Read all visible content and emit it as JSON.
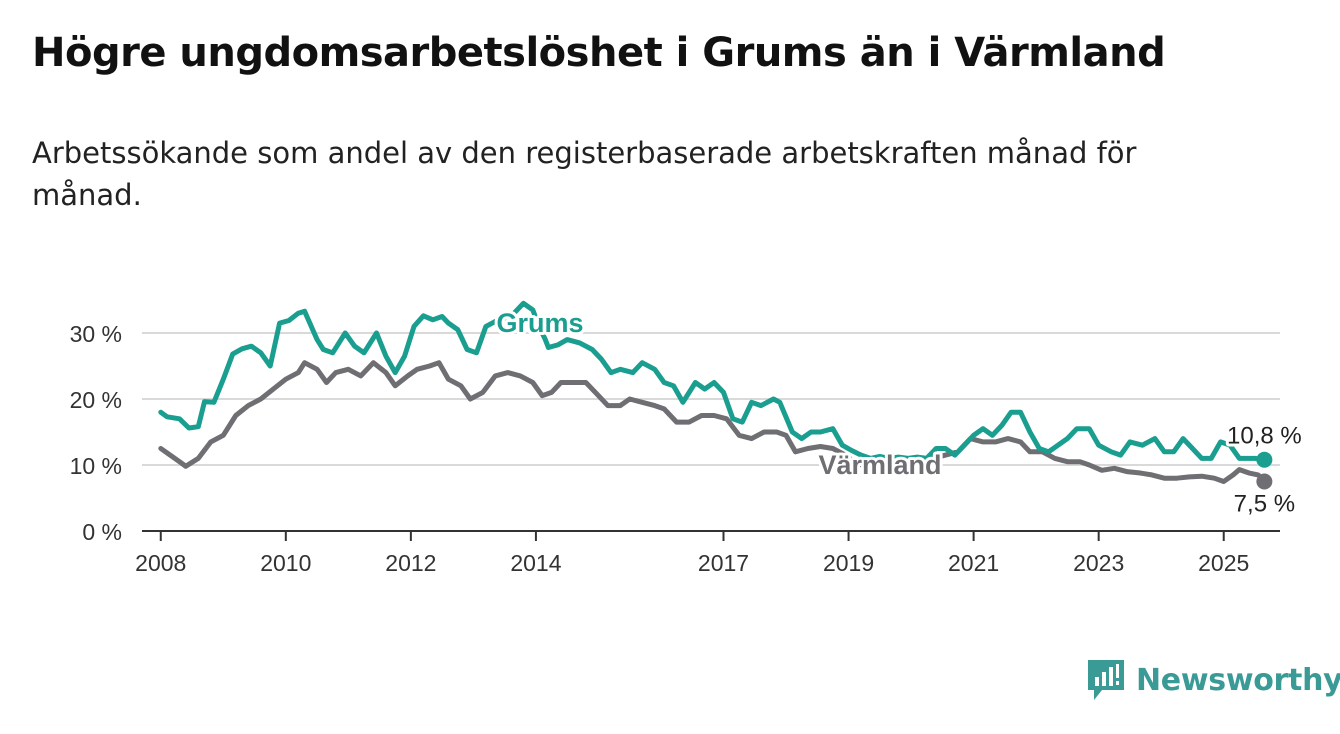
{
  "title": "Högre ungdomsarbetslöshet i Grums än i Värmland",
  "subtitle": "Arbetssökande som andel av den registerbaserade arbetskraften månad för månad.",
  "brand": "Newsworthy",
  "colors": {
    "grums": "#1a9e8f",
    "varmland": "#6e6e73",
    "grid": "#d9d9d9",
    "axis": "#333333",
    "brand": "#3a9a96"
  },
  "chart_data": {
    "type": "line",
    "title": "Högre ungdomsarbetslöshet i Grums än i Värmland",
    "ylim": [
      0,
      35
    ],
    "xlim": [
      2007.7,
      2025.9
    ],
    "y_ticks": [
      0,
      10,
      20,
      30
    ],
    "y_tick_labels": [
      "0 %",
      "10 %",
      "20 %",
      "30 %"
    ],
    "x_ticks": [
      2008,
      2010,
      2012,
      2014,
      2017,
      2019,
      2021,
      2023,
      2025
    ],
    "x_tick_labels": [
      "2008",
      "2010",
      "2012",
      "2014",
      "2017",
      "2019",
      "2021",
      "2023",
      "2025"
    ],
    "grid": true,
    "series": [
      {
        "name": "Grums",
        "end_label": "10,8 %",
        "points": [
          [
            2008.0,
            18.0
          ],
          [
            2008.1,
            17.3
          ],
          [
            2008.3,
            17.0
          ],
          [
            2008.45,
            15.6
          ],
          [
            2008.6,
            15.8
          ],
          [
            2008.7,
            19.6
          ],
          [
            2008.85,
            19.5
          ],
          [
            2009.0,
            23.0
          ],
          [
            2009.15,
            26.8
          ],
          [
            2009.3,
            27.6
          ],
          [
            2009.45,
            28.0
          ],
          [
            2009.6,
            27.0
          ],
          [
            2009.75,
            25.0
          ],
          [
            2009.9,
            31.5
          ],
          [
            2010.05,
            31.9
          ],
          [
            2010.2,
            33.0
          ],
          [
            2010.3,
            33.3
          ],
          [
            2010.5,
            29.0
          ],
          [
            2010.6,
            27.5
          ],
          [
            2010.75,
            27.0
          ],
          [
            2010.95,
            30.0
          ],
          [
            2011.1,
            28.0
          ],
          [
            2011.25,
            27.0
          ],
          [
            2011.45,
            30.0
          ],
          [
            2011.6,
            26.5
          ],
          [
            2011.75,
            24.0
          ],
          [
            2011.9,
            26.5
          ],
          [
            2012.05,
            31.0
          ],
          [
            2012.2,
            32.6
          ],
          [
            2012.35,
            32.0
          ],
          [
            2012.5,
            32.5
          ],
          [
            2012.6,
            31.5
          ],
          [
            2012.75,
            30.5
          ],
          [
            2012.9,
            27.5
          ],
          [
            2013.05,
            27.0
          ],
          [
            2013.2,
            31.0
          ],
          [
            2013.4,
            32.0
          ],
          [
            2013.6,
            32.5
          ],
          [
            2013.8,
            34.5
          ],
          [
            2013.95,
            33.5
          ],
          [
            2014.05,
            31.0
          ],
          [
            2014.15,
            29.0
          ],
          [
            2014.2,
            27.8
          ],
          [
            2014.35,
            28.2
          ],
          [
            2014.5,
            29.0
          ],
          [
            2014.7,
            28.5
          ],
          [
            2014.9,
            27.5
          ],
          [
            2015.05,
            26.0
          ],
          [
            2015.2,
            24.0
          ],
          [
            2015.35,
            24.5
          ],
          [
            2015.55,
            24.0
          ],
          [
            2015.7,
            25.5
          ],
          [
            2015.9,
            24.5
          ],
          [
            2016.05,
            22.5
          ],
          [
            2016.2,
            22.0
          ],
          [
            2016.35,
            19.5
          ],
          [
            2016.55,
            22.5
          ],
          [
            2016.7,
            21.5
          ],
          [
            2016.85,
            22.5
          ],
          [
            2017.0,
            21.0
          ],
          [
            2017.15,
            17.0
          ],
          [
            2017.3,
            16.5
          ],
          [
            2017.45,
            19.5
          ],
          [
            2017.6,
            19.0
          ],
          [
            2017.8,
            20.0
          ],
          [
            2017.9,
            19.5
          ],
          [
            2018.1,
            15.0
          ],
          [
            2018.25,
            14.0
          ],
          [
            2018.4,
            15.0
          ],
          [
            2018.55,
            15.0
          ],
          [
            2018.75,
            15.5
          ],
          [
            2018.9,
            13.0
          ],
          [
            2019.05,
            12.2
          ],
          [
            2019.2,
            11.5
          ],
          [
            2019.35,
            11.0
          ],
          [
            2019.5,
            11.3
          ],
          [
            2019.65,
            11.0
          ],
          [
            2019.8,
            11.2
          ],
          [
            2019.95,
            11.0
          ],
          [
            2020.1,
            11.2
          ],
          [
            2020.25,
            11.0
          ],
          [
            2020.4,
            12.5
          ],
          [
            2020.55,
            12.5
          ],
          [
            2020.7,
            11.5
          ],
          [
            2020.85,
            13.0
          ],
          [
            2021.0,
            14.5
          ],
          [
            2021.15,
            15.5
          ],
          [
            2021.3,
            14.5
          ],
          [
            2021.45,
            16.0
          ],
          [
            2021.6,
            18.0
          ],
          [
            2021.75,
            18.0
          ],
          [
            2021.9,
            15.0
          ],
          [
            2022.05,
            12.5
          ],
          [
            2022.2,
            12.0
          ],
          [
            2022.35,
            13.0
          ],
          [
            2022.5,
            14.0
          ],
          [
            2022.65,
            15.5
          ],
          [
            2022.85,
            15.5
          ],
          [
            2023.0,
            13.0
          ],
          [
            2023.2,
            12.0
          ],
          [
            2023.35,
            11.5
          ],
          [
            2023.5,
            13.5
          ],
          [
            2023.7,
            13.0
          ],
          [
            2023.9,
            14.0
          ],
          [
            2024.05,
            12.0
          ],
          [
            2024.2,
            12.0
          ],
          [
            2024.35,
            14.0
          ],
          [
            2024.5,
            12.5
          ],
          [
            2024.65,
            11.0
          ],
          [
            2024.8,
            11.0
          ],
          [
            2024.95,
            13.5
          ],
          [
            2025.1,
            13.0
          ],
          [
            2025.25,
            11.0
          ],
          [
            2025.35,
            11.0
          ],
          [
            2025.5,
            11.0
          ],
          [
            2025.65,
            10.8
          ]
        ]
      },
      {
        "name": "Värmland",
        "end_label": "7,5 %",
        "points": [
          [
            2008.0,
            12.5
          ],
          [
            2008.15,
            11.5
          ],
          [
            2008.3,
            10.5
          ],
          [
            2008.4,
            9.8
          ],
          [
            2008.6,
            11.0
          ],
          [
            2008.8,
            13.5
          ],
          [
            2009.0,
            14.5
          ],
          [
            2009.2,
            17.5
          ],
          [
            2009.4,
            19.0
          ],
          [
            2009.6,
            20.0
          ],
          [
            2009.8,
            21.5
          ],
          [
            2010.0,
            23.0
          ],
          [
            2010.2,
            24.0
          ],
          [
            2010.3,
            25.5
          ],
          [
            2010.5,
            24.5
          ],
          [
            2010.65,
            22.5
          ],
          [
            2010.8,
            24.0
          ],
          [
            2011.0,
            24.5
          ],
          [
            2011.2,
            23.5
          ],
          [
            2011.4,
            25.5
          ],
          [
            2011.6,
            24.0
          ],
          [
            2011.75,
            22.0
          ],
          [
            2011.95,
            23.5
          ],
          [
            2012.1,
            24.5
          ],
          [
            2012.3,
            25.0
          ],
          [
            2012.45,
            25.5
          ],
          [
            2012.6,
            23.0
          ],
          [
            2012.8,
            22.0
          ],
          [
            2012.95,
            20.0
          ],
          [
            2013.15,
            21.0
          ],
          [
            2013.35,
            23.5
          ],
          [
            2013.55,
            24.0
          ],
          [
            2013.75,
            23.5
          ],
          [
            2013.95,
            22.5
          ],
          [
            2014.1,
            20.5
          ],
          [
            2014.25,
            21.0
          ],
          [
            2014.4,
            22.5
          ],
          [
            2014.6,
            22.5
          ],
          [
            2014.8,
            22.5
          ],
          [
            2015.0,
            20.5
          ],
          [
            2015.15,
            19.0
          ],
          [
            2015.35,
            19.0
          ],
          [
            2015.5,
            20.0
          ],
          [
            2015.7,
            19.5
          ],
          [
            2015.9,
            19.0
          ],
          [
            2016.05,
            18.5
          ],
          [
            2016.25,
            16.5
          ],
          [
            2016.45,
            16.5
          ],
          [
            2016.65,
            17.5
          ],
          [
            2016.85,
            17.5
          ],
          [
            2017.05,
            17.0
          ],
          [
            2017.25,
            14.5
          ],
          [
            2017.45,
            14.0
          ],
          [
            2017.65,
            15.0
          ],
          [
            2017.85,
            15.0
          ],
          [
            2018.0,
            14.5
          ],
          [
            2018.15,
            12.0
          ],
          [
            2018.35,
            12.5
          ],
          [
            2018.55,
            12.8
          ],
          [
            2018.75,
            12.5
          ],
          [
            2018.95,
            11.5
          ],
          [
            2019.15,
            10.0
          ],
          [
            2019.35,
            10.2
          ],
          [
            2019.55,
            10.5
          ],
          [
            2019.75,
            10.2
          ],
          [
            2019.95,
            10.2
          ],
          [
            2020.15,
            10.0
          ],
          [
            2020.35,
            11.0
          ],
          [
            2020.55,
            11.5
          ],
          [
            2020.75,
            12.0
          ],
          [
            2020.95,
            14.0
          ],
          [
            2021.15,
            13.5
          ],
          [
            2021.35,
            13.5
          ],
          [
            2021.55,
            14.0
          ],
          [
            2021.75,
            13.5
          ],
          [
            2021.9,
            12.0
          ],
          [
            2022.1,
            12.0
          ],
          [
            2022.3,
            11.0
          ],
          [
            2022.5,
            10.5
          ],
          [
            2022.7,
            10.5
          ],
          [
            2022.85,
            10.0
          ],
          [
            2023.05,
            9.2
          ],
          [
            2023.25,
            9.5
          ],
          [
            2023.45,
            9.0
          ],
          [
            2023.65,
            8.8
          ],
          [
            2023.85,
            8.5
          ],
          [
            2024.05,
            8.0
          ],
          [
            2024.25,
            8.0
          ],
          [
            2024.45,
            8.2
          ],
          [
            2024.65,
            8.3
          ],
          [
            2024.85,
            8.0
          ],
          [
            2025.0,
            7.5
          ],
          [
            2025.15,
            8.5
          ],
          [
            2025.25,
            9.3
          ],
          [
            2025.4,
            8.8
          ],
          [
            2025.55,
            8.5
          ],
          [
            2025.65,
            7.5
          ]
        ]
      }
    ]
  }
}
